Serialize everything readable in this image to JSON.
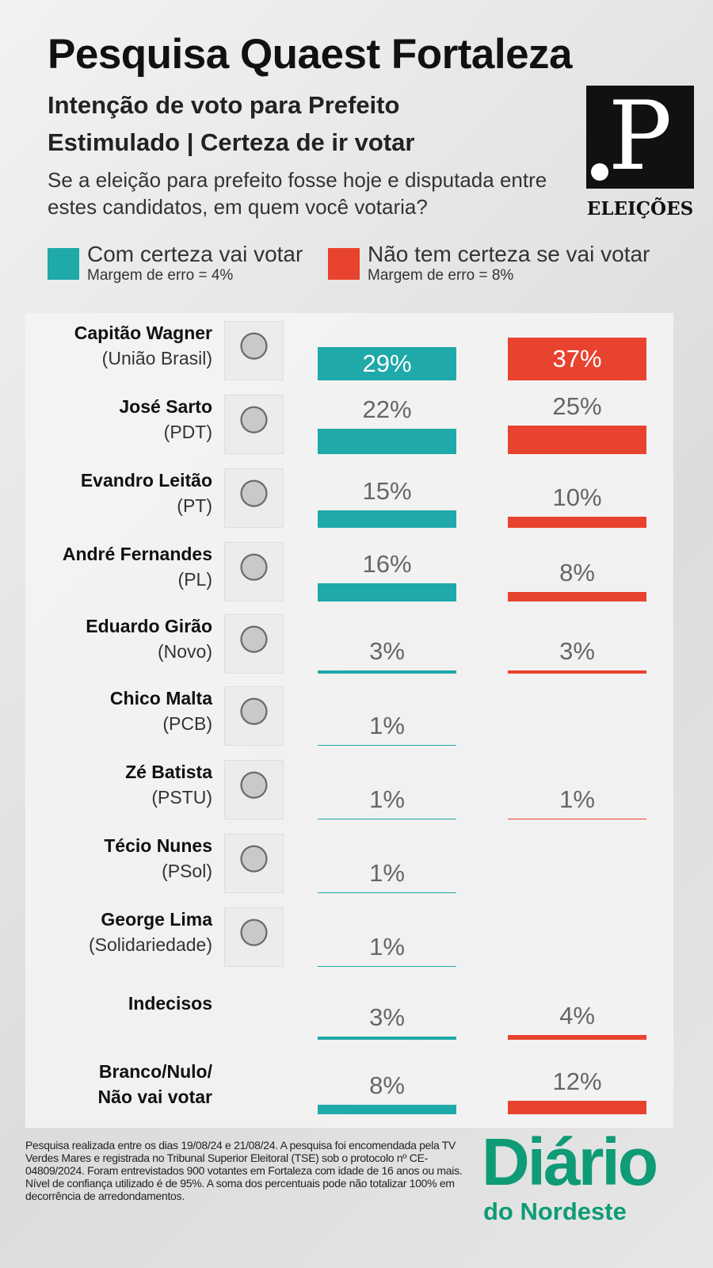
{
  "header": {
    "title": "Pesquisa Quaest Fortaleza",
    "subtitle1": "Intenção de voto para Prefeito",
    "subtitle2": "Estimulado | Certeza de ir votar",
    "question": "Se a eleição para prefeito fosse hoje e disputada entre estes candidatos, em quem você votaria?",
    "logo_letter": "P",
    "logo_sub": "ELEIÇÕES"
  },
  "colors": {
    "teal": "#1fa9a8",
    "red": "#e8432e"
  },
  "chart_data": {
    "type": "bar",
    "title": "Intenção de voto para Prefeito",
    "series": [
      {
        "name": "Com certeza vai votar",
        "note": "Margem de erro = 4%",
        "color": "#1fa9a8",
        "values": [
          29,
          22,
          15,
          16,
          3,
          1,
          1,
          1,
          1,
          3,
          8
        ]
      },
      {
        "name": "Não tem certeza se vai votar",
        "note": "Margem de erro = 8%",
        "color": "#e8432e",
        "values": [
          37,
          25,
          10,
          8,
          3,
          null,
          1,
          null,
          null,
          4,
          12
        ]
      }
    ],
    "categories": [
      {
        "name": "Capitão Wagner",
        "party": "(União Brasil)",
        "photo": true
      },
      {
        "name": "José Sarto",
        "party": "(PDT)",
        "photo": true
      },
      {
        "name": "Evandro Leitão",
        "party": "(PT)",
        "photo": true
      },
      {
        "name": "André Fernandes",
        "party": "(PL)",
        "photo": true
      },
      {
        "name": "Eduardo Girão",
        "party": "(Novo)",
        "photo": true
      },
      {
        "name": "Chico Malta",
        "party": "(PCB)",
        "photo": true
      },
      {
        "name": "Zé Batista",
        "party": "(PSTU)",
        "photo": true
      },
      {
        "name": "Técio Nunes",
        "party": "(PSol)",
        "photo": true
      },
      {
        "name": "George Lima",
        "party": "(Solidariedade)",
        "photo": true
      },
      {
        "name": "Indecisos",
        "party": "",
        "photo": false
      },
      {
        "name": "Branco/Nulo/",
        "party": "Não vai votar",
        "photo": false,
        "bold_party": true
      }
    ]
  },
  "footer": {
    "note": "Pesquisa realizada entre os dias 19/08/24 e  21/08/24. A pesquisa foi encomendada pela TV Verdes Mares e registrada no Tribunal Superior Eleitoral (TSE) sob o protocolo nº CE-04809/2024. Foram entrevistados 900 votantes em Fortaleza com idade de 16 anos ou mais. Nível de confiança utilizado é de 95%. A soma dos percentuais pode não totalizar 100% em decorrência de arredondamentos.",
    "brand1": "Diário",
    "brand2": "do Nordeste"
  }
}
